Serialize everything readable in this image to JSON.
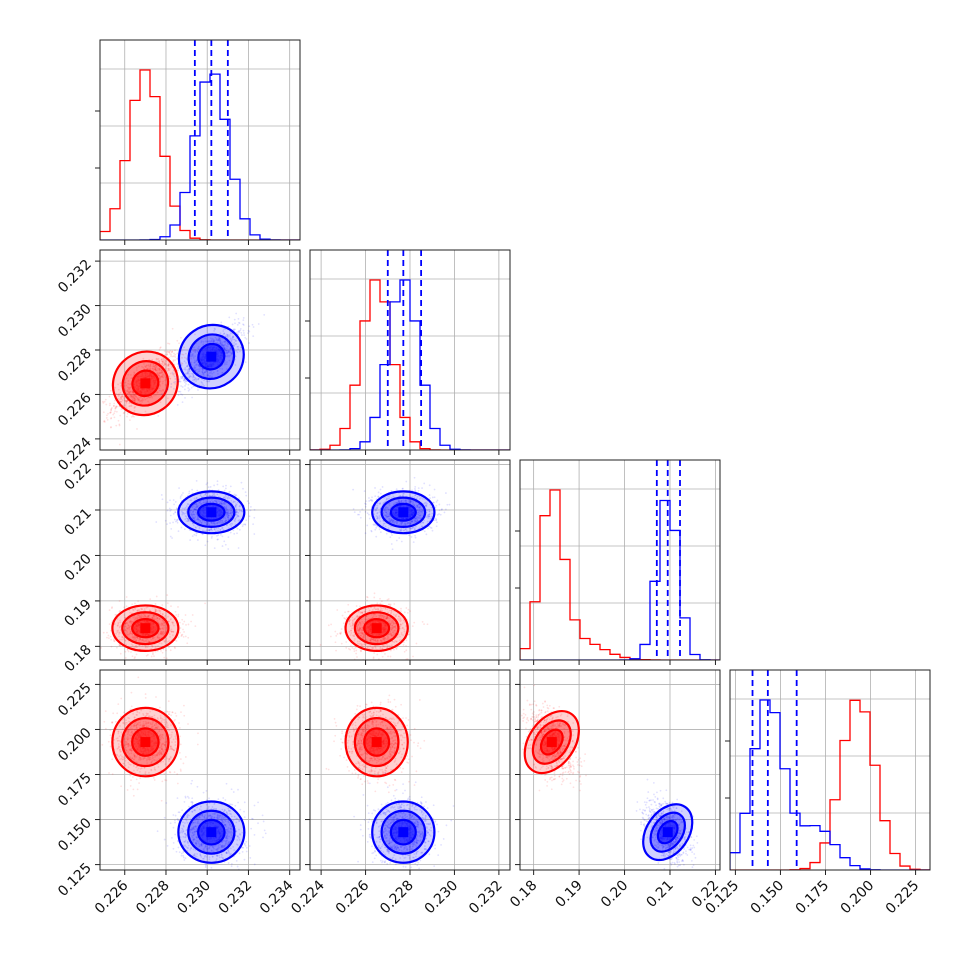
{
  "chart_data": {
    "type": "corner",
    "dimensions": 4,
    "grid": true,
    "samples": [
      {
        "color": "#ff0000",
        "mean": [
          0.227,
          0.2265,
          0.184,
          0.193
        ],
        "std": [
          0.0008,
          0.0007,
          0.0025,
          0.0095
        ]
      },
      {
        "color": "#0000ff",
        "mean": [
          0.2302,
          0.2277,
          0.2095,
          0.143
        ],
        "std": [
          0.0008,
          0.0007,
          0.0023,
          0.0085
        ],
        "quantiles": [
          [
            0.2294,
            0.2302,
            0.231
          ],
          [
            0.227,
            0.2277,
            0.2285
          ],
          [
            0.2071,
            0.2095,
            0.2122
          ],
          [
            0.1345,
            0.143,
            0.159
          ]
        ]
      }
    ],
    "axes": [
      {
        "range": [
          0.2248,
          0.2345
        ],
        "ticks": [
          "0.226",
          "0.228",
          "0.230",
          "0.232",
          "0.234"
        ],
        "tick_values": [
          0.226,
          0.228,
          0.23,
          0.232,
          0.234
        ]
      },
      {
        "range": [
          0.2235,
          0.2325
        ],
        "ticks": [
          "0.224",
          "0.226",
          "0.228",
          "0.230",
          "0.232"
        ],
        "tick_values": [
          0.224,
          0.226,
          0.228,
          0.23,
          0.232
        ]
      },
      {
        "range": [
          0.177,
          0.221
        ],
        "ticks": [
          "0.18",
          "0.19",
          "0.20",
          "0.21",
          "0.22"
        ],
        "tick_values": [
          0.18,
          0.19,
          0.2,
          0.21,
          0.22
        ]
      },
      {
        "range": [
          0.122,
          0.233
        ],
        "ticks": [
          "0.125",
          "0.150",
          "0.175",
          "0.200",
          "0.225"
        ],
        "tick_values": [
          0.125,
          0.15,
          0.175,
          0.2,
          0.225
        ]
      }
    ]
  }
}
